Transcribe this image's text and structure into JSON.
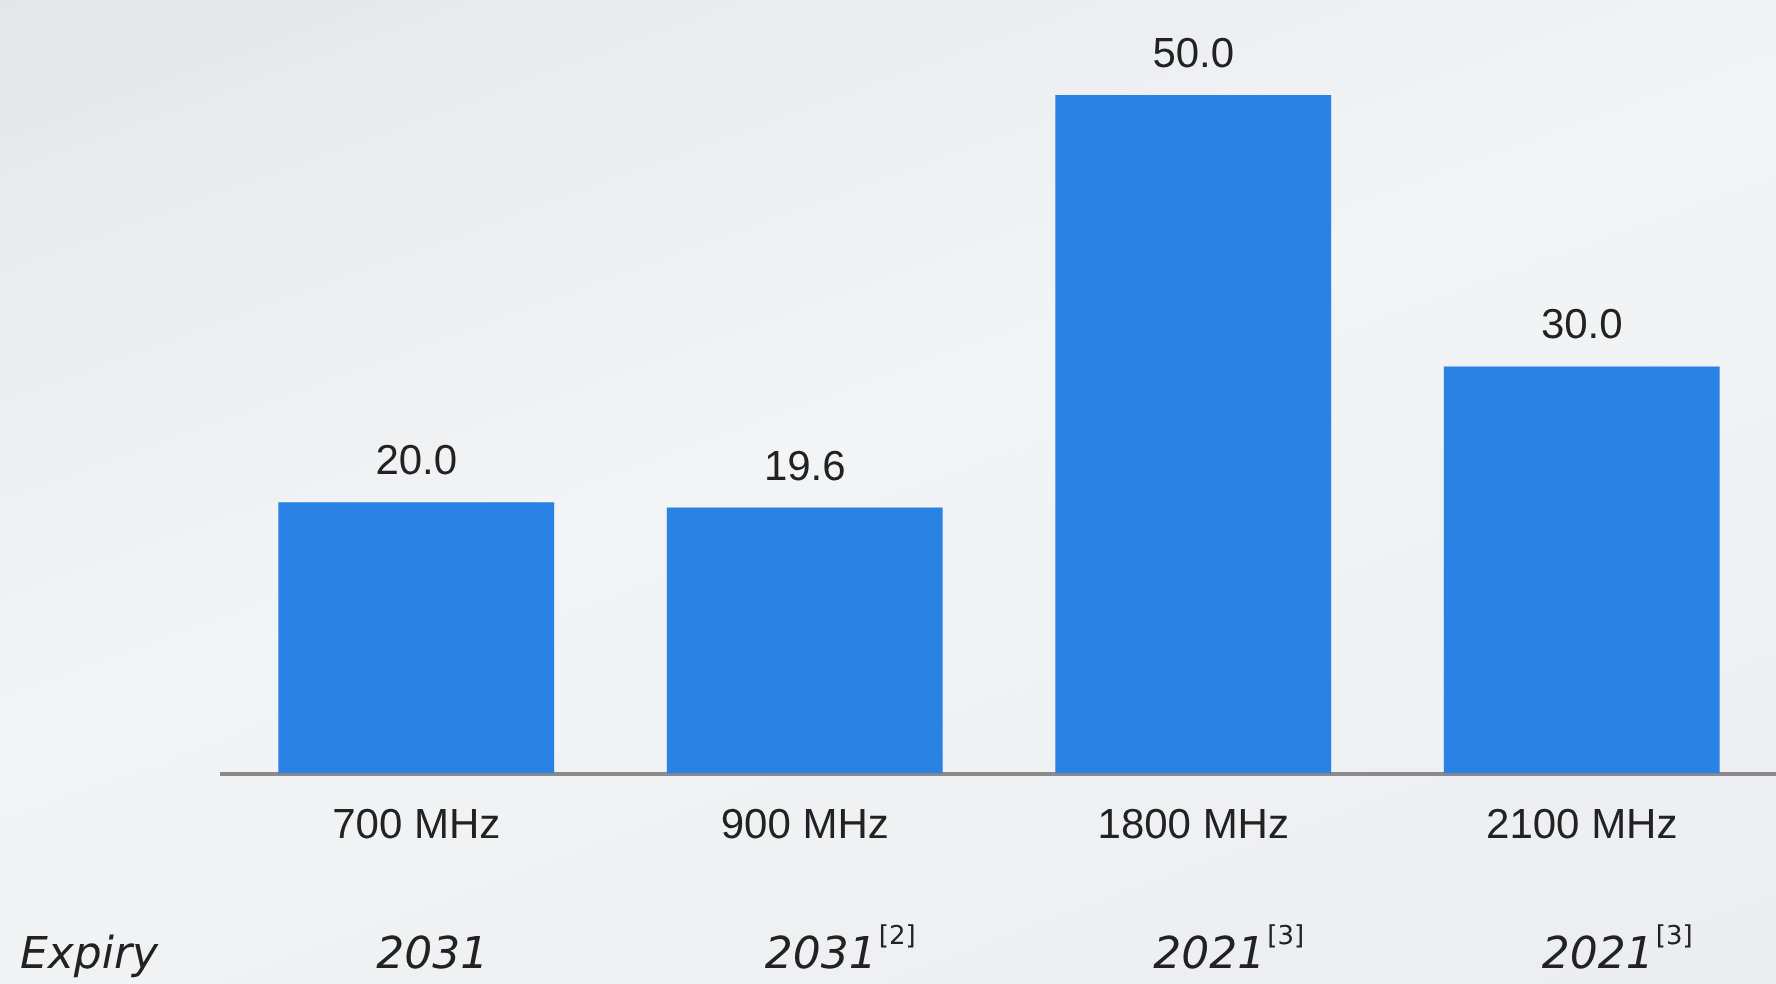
{
  "chart_data": {
    "type": "bar",
    "categories": [
      "700 MHz",
      "900 MHz",
      "1800 MHz",
      "2100 MHz"
    ],
    "values": [
      20.0,
      19.6,
      50.0,
      30.0
    ],
    "value_labels": [
      "20.0",
      "19.6",
      "50.0",
      "30.0"
    ],
    "color": "#2a82e4",
    "tick_labels": "x",
    "grid": false,
    "legend": false,
    "annotations": [
      "Expiry",
      "2031",
      "2031$^{[2]}$",
      "2021$^{[3]}$",
      "2021$^{[3]}$"
    ]
  }
}
